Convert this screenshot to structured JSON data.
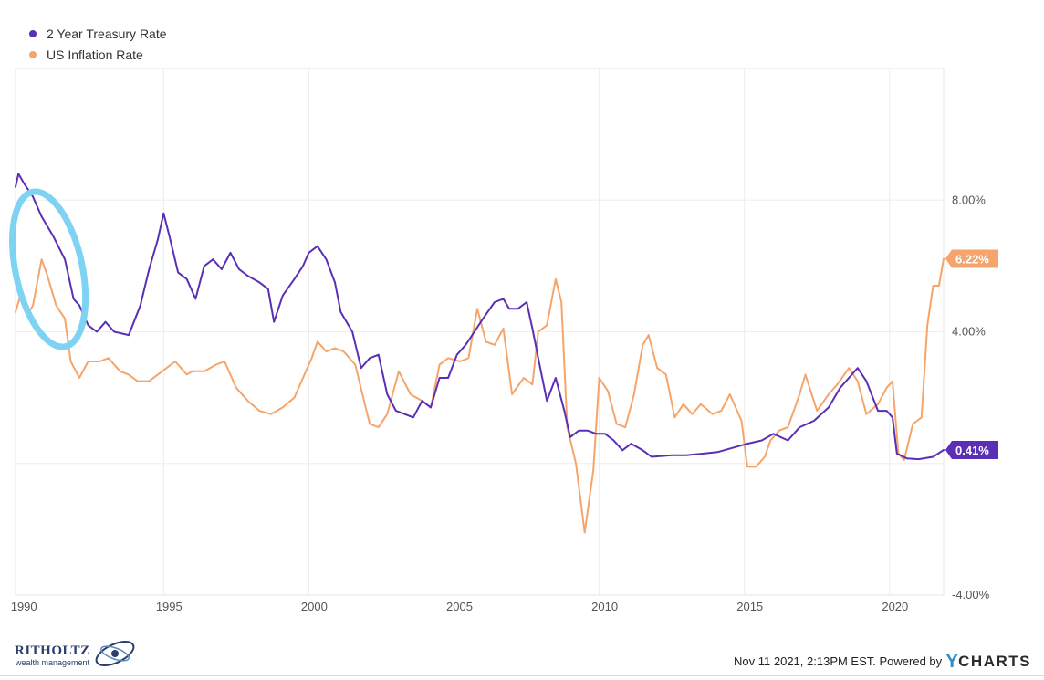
{
  "chart_data": {
    "type": "line",
    "title": "",
    "xlabel": "",
    "ylabel": "",
    "x_ticks": [
      "1990",
      "1995",
      "2000",
      "2005",
      "2010",
      "2015",
      "2020"
    ],
    "y_ticks": [
      "8.00%",
      "4.00%",
      "-4.00%"
    ],
    "xlim": [
      1989.9,
      2021.86
    ],
    "ylim": [
      -4,
      12
    ],
    "y_axis_side": "right",
    "grid": "vertical and horizontal",
    "legend_position": "top-left",
    "series": [
      {
        "name": "2 Year Treasury Rate",
        "color": "#5b2fb5",
        "end_label": "0.41%",
        "points": [
          [
            1989.9,
            8.4
          ],
          [
            1990.0,
            8.8
          ],
          [
            1990.2,
            8.5
          ],
          [
            1990.5,
            8.1
          ],
          [
            1990.8,
            7.5
          ],
          [
            1991.2,
            6.9
          ],
          [
            1991.6,
            6.2
          ],
          [
            1991.9,
            5.0
          ],
          [
            1992.1,
            4.8
          ],
          [
            1992.4,
            4.2
          ],
          [
            1992.7,
            4.0
          ],
          [
            1993.0,
            4.3
          ],
          [
            1993.3,
            4.0
          ],
          [
            1993.8,
            3.9
          ],
          [
            1994.2,
            4.8
          ],
          [
            1994.5,
            5.9
          ],
          [
            1994.8,
            6.8
          ],
          [
            1995.0,
            7.6
          ],
          [
            1995.2,
            6.9
          ],
          [
            1995.5,
            5.8
          ],
          [
            1995.8,
            5.6
          ],
          [
            1996.1,
            5.0
          ],
          [
            1996.4,
            6.0
          ],
          [
            1996.7,
            6.2
          ],
          [
            1997.0,
            5.9
          ],
          [
            1997.3,
            6.4
          ],
          [
            1997.6,
            5.9
          ],
          [
            1997.9,
            5.7
          ],
          [
            1998.3,
            5.5
          ],
          [
            1998.6,
            5.3
          ],
          [
            1998.8,
            4.3
          ],
          [
            1999.1,
            5.1
          ],
          [
            1999.5,
            5.6
          ],
          [
            1999.8,
            6.0
          ],
          [
            2000.0,
            6.4
          ],
          [
            2000.3,
            6.6
          ],
          [
            2000.6,
            6.2
          ],
          [
            2000.9,
            5.5
          ],
          [
            2001.1,
            4.6
          ],
          [
            2001.5,
            4.0
          ],
          [
            2001.8,
            2.9
          ],
          [
            2002.1,
            3.2
          ],
          [
            2002.4,
            3.3
          ],
          [
            2002.7,
            2.1
          ],
          [
            2003.0,
            1.6
          ],
          [
            2003.3,
            1.5
          ],
          [
            2003.6,
            1.4
          ],
          [
            2003.9,
            1.9
          ],
          [
            2004.2,
            1.7
          ],
          [
            2004.5,
            2.6
          ],
          [
            2004.8,
            2.6
          ],
          [
            2005.1,
            3.3
          ],
          [
            2005.4,
            3.6
          ],
          [
            2005.7,
            4.0
          ],
          [
            2006.0,
            4.4
          ],
          [
            2006.4,
            4.9
          ],
          [
            2006.7,
            5.0
          ],
          [
            2006.9,
            4.7
          ],
          [
            2007.2,
            4.7
          ],
          [
            2007.5,
            4.9
          ],
          [
            2007.7,
            4.1
          ],
          [
            2007.9,
            3.2
          ],
          [
            2008.2,
            1.9
          ],
          [
            2008.5,
            2.6
          ],
          [
            2008.8,
            1.6
          ],
          [
            2009.0,
            0.8
          ],
          [
            2009.3,
            1.0
          ],
          [
            2009.6,
            1.0
          ],
          [
            2009.9,
            0.9
          ],
          [
            2010.2,
            0.9
          ],
          [
            2010.5,
            0.7
          ],
          [
            2010.8,
            0.4
          ],
          [
            2011.1,
            0.6
          ],
          [
            2011.5,
            0.4
          ],
          [
            2011.8,
            0.2
          ],
          [
            2012.5,
            0.25
          ],
          [
            2013.0,
            0.25
          ],
          [
            2013.6,
            0.3
          ],
          [
            2014.1,
            0.35
          ],
          [
            2014.7,
            0.5
          ],
          [
            2015.1,
            0.6
          ],
          [
            2015.6,
            0.7
          ],
          [
            2016.0,
            0.9
          ],
          [
            2016.5,
            0.7
          ],
          [
            2016.9,
            1.1
          ],
          [
            2017.4,
            1.3
          ],
          [
            2017.9,
            1.7
          ],
          [
            2018.3,
            2.3
          ],
          [
            2018.7,
            2.7
          ],
          [
            2018.9,
            2.9
          ],
          [
            2019.2,
            2.5
          ],
          [
            2019.6,
            1.6
          ],
          [
            2019.9,
            1.6
          ],
          [
            2020.1,
            1.4
          ],
          [
            2020.25,
            0.3
          ],
          [
            2020.6,
            0.15
          ],
          [
            2021.0,
            0.13
          ],
          [
            2021.5,
            0.2
          ],
          [
            2021.86,
            0.41
          ]
        ]
      },
      {
        "name": "US Inflation Rate",
        "color": "#f5a56b",
        "end_label": "6.22%",
        "points": [
          [
            1989.9,
            4.6
          ],
          [
            1990.1,
            5.2
          ],
          [
            1990.3,
            4.5
          ],
          [
            1990.5,
            4.8
          ],
          [
            1990.8,
            6.2
          ],
          [
            1991.0,
            5.7
          ],
          [
            1991.3,
            4.8
          ],
          [
            1991.6,
            4.4
          ],
          [
            1991.8,
            3.1
          ],
          [
            1992.1,
            2.6
          ],
          [
            1992.4,
            3.1
          ],
          [
            1992.8,
            3.1
          ],
          [
            1993.1,
            3.2
          ],
          [
            1993.5,
            2.8
          ],
          [
            1993.8,
            2.7
          ],
          [
            1994.1,
            2.5
          ],
          [
            1994.5,
            2.5
          ],
          [
            1994.8,
            2.7
          ],
          [
            1995.1,
            2.9
          ],
          [
            1995.4,
            3.1
          ],
          [
            1995.8,
            2.7
          ],
          [
            1996.0,
            2.8
          ],
          [
            1996.4,
            2.8
          ],
          [
            1996.8,
            3.0
          ],
          [
            1997.1,
            3.1
          ],
          [
            1997.5,
            2.3
          ],
          [
            1997.9,
            1.9
          ],
          [
            1998.3,
            1.6
          ],
          [
            1998.7,
            1.5
          ],
          [
            1999.1,
            1.7
          ],
          [
            1999.5,
            2.0
          ],
          [
            1999.8,
            2.6
          ],
          [
            2000.1,
            3.2
          ],
          [
            2000.3,
            3.7
          ],
          [
            2000.6,
            3.4
          ],
          [
            2000.9,
            3.5
          ],
          [
            2001.2,
            3.4
          ],
          [
            2001.6,
            3.0
          ],
          [
            2001.9,
            1.9
          ],
          [
            2002.1,
            1.2
          ],
          [
            2002.4,
            1.1
          ],
          [
            2002.7,
            1.5
          ],
          [
            2003.1,
            2.8
          ],
          [
            2003.5,
            2.1
          ],
          [
            2003.9,
            1.9
          ],
          [
            2004.2,
            1.7
          ],
          [
            2004.5,
            3.0
          ],
          [
            2004.8,
            3.2
          ],
          [
            2005.2,
            3.1
          ],
          [
            2005.5,
            3.2
          ],
          [
            2005.8,
            4.7
          ],
          [
            2006.1,
            3.7
          ],
          [
            2006.4,
            3.6
          ],
          [
            2006.7,
            4.1
          ],
          [
            2007.0,
            2.1
          ],
          [
            2007.4,
            2.6
          ],
          [
            2007.7,
            2.4
          ],
          [
            2007.9,
            4.0
          ],
          [
            2008.2,
            4.2
          ],
          [
            2008.5,
            5.6
          ],
          [
            2008.7,
            4.9
          ],
          [
            2008.9,
            1.1
          ],
          [
            2009.2,
            0.0
          ],
          [
            2009.5,
            -2.1
          ],
          [
            2009.8,
            -0.2
          ],
          [
            2010.0,
            2.6
          ],
          [
            2010.3,
            2.2
          ],
          [
            2010.6,
            1.2
          ],
          [
            2010.9,
            1.1
          ],
          [
            2011.2,
            2.1
          ],
          [
            2011.5,
            3.6
          ],
          [
            2011.7,
            3.9
          ],
          [
            2012.0,
            2.9
          ],
          [
            2012.3,
            2.7
          ],
          [
            2012.6,
            1.4
          ],
          [
            2012.9,
            1.8
          ],
          [
            2013.2,
            1.5
          ],
          [
            2013.5,
            1.8
          ],
          [
            2013.9,
            1.5
          ],
          [
            2014.2,
            1.6
          ],
          [
            2014.5,
            2.1
          ],
          [
            2014.9,
            1.3
          ],
          [
            2015.1,
            -0.1
          ],
          [
            2015.4,
            -0.1
          ],
          [
            2015.7,
            0.2
          ],
          [
            2015.9,
            0.7
          ],
          [
            2016.2,
            1.0
          ],
          [
            2016.5,
            1.1
          ],
          [
            2016.9,
            2.1
          ],
          [
            2017.1,
            2.7
          ],
          [
            2017.5,
            1.6
          ],
          [
            2017.9,
            2.1
          ],
          [
            2018.2,
            2.4
          ],
          [
            2018.6,
            2.9
          ],
          [
            2018.9,
            2.5
          ],
          [
            2019.2,
            1.5
          ],
          [
            2019.6,
            1.8
          ],
          [
            2019.9,
            2.3
          ],
          [
            2020.1,
            2.5
          ],
          [
            2020.3,
            0.3
          ],
          [
            2020.5,
            0.1
          ],
          [
            2020.8,
            1.2
          ],
          [
            2021.1,
            1.4
          ],
          [
            2021.3,
            4.2
          ],
          [
            2021.5,
            5.4
          ],
          [
            2021.7,
            5.4
          ],
          [
            2021.86,
            6.22
          ]
        ]
      }
    ]
  },
  "footer": {
    "timestamp": "Nov 11 2021, 2:13PM EST. Powered by",
    "ycharts_y": "Y",
    "ycharts_text": "CHARTS"
  },
  "branding": {
    "name": "RITHOLTZ",
    "subtitle": "wealth management"
  },
  "annotation": {
    "shape": "hand-drawn ellipse",
    "color": "#7fd3f2",
    "x_range": [
      1989.9,
      1992.2
    ],
    "y_range": [
      3.5,
      8.3
    ]
  }
}
